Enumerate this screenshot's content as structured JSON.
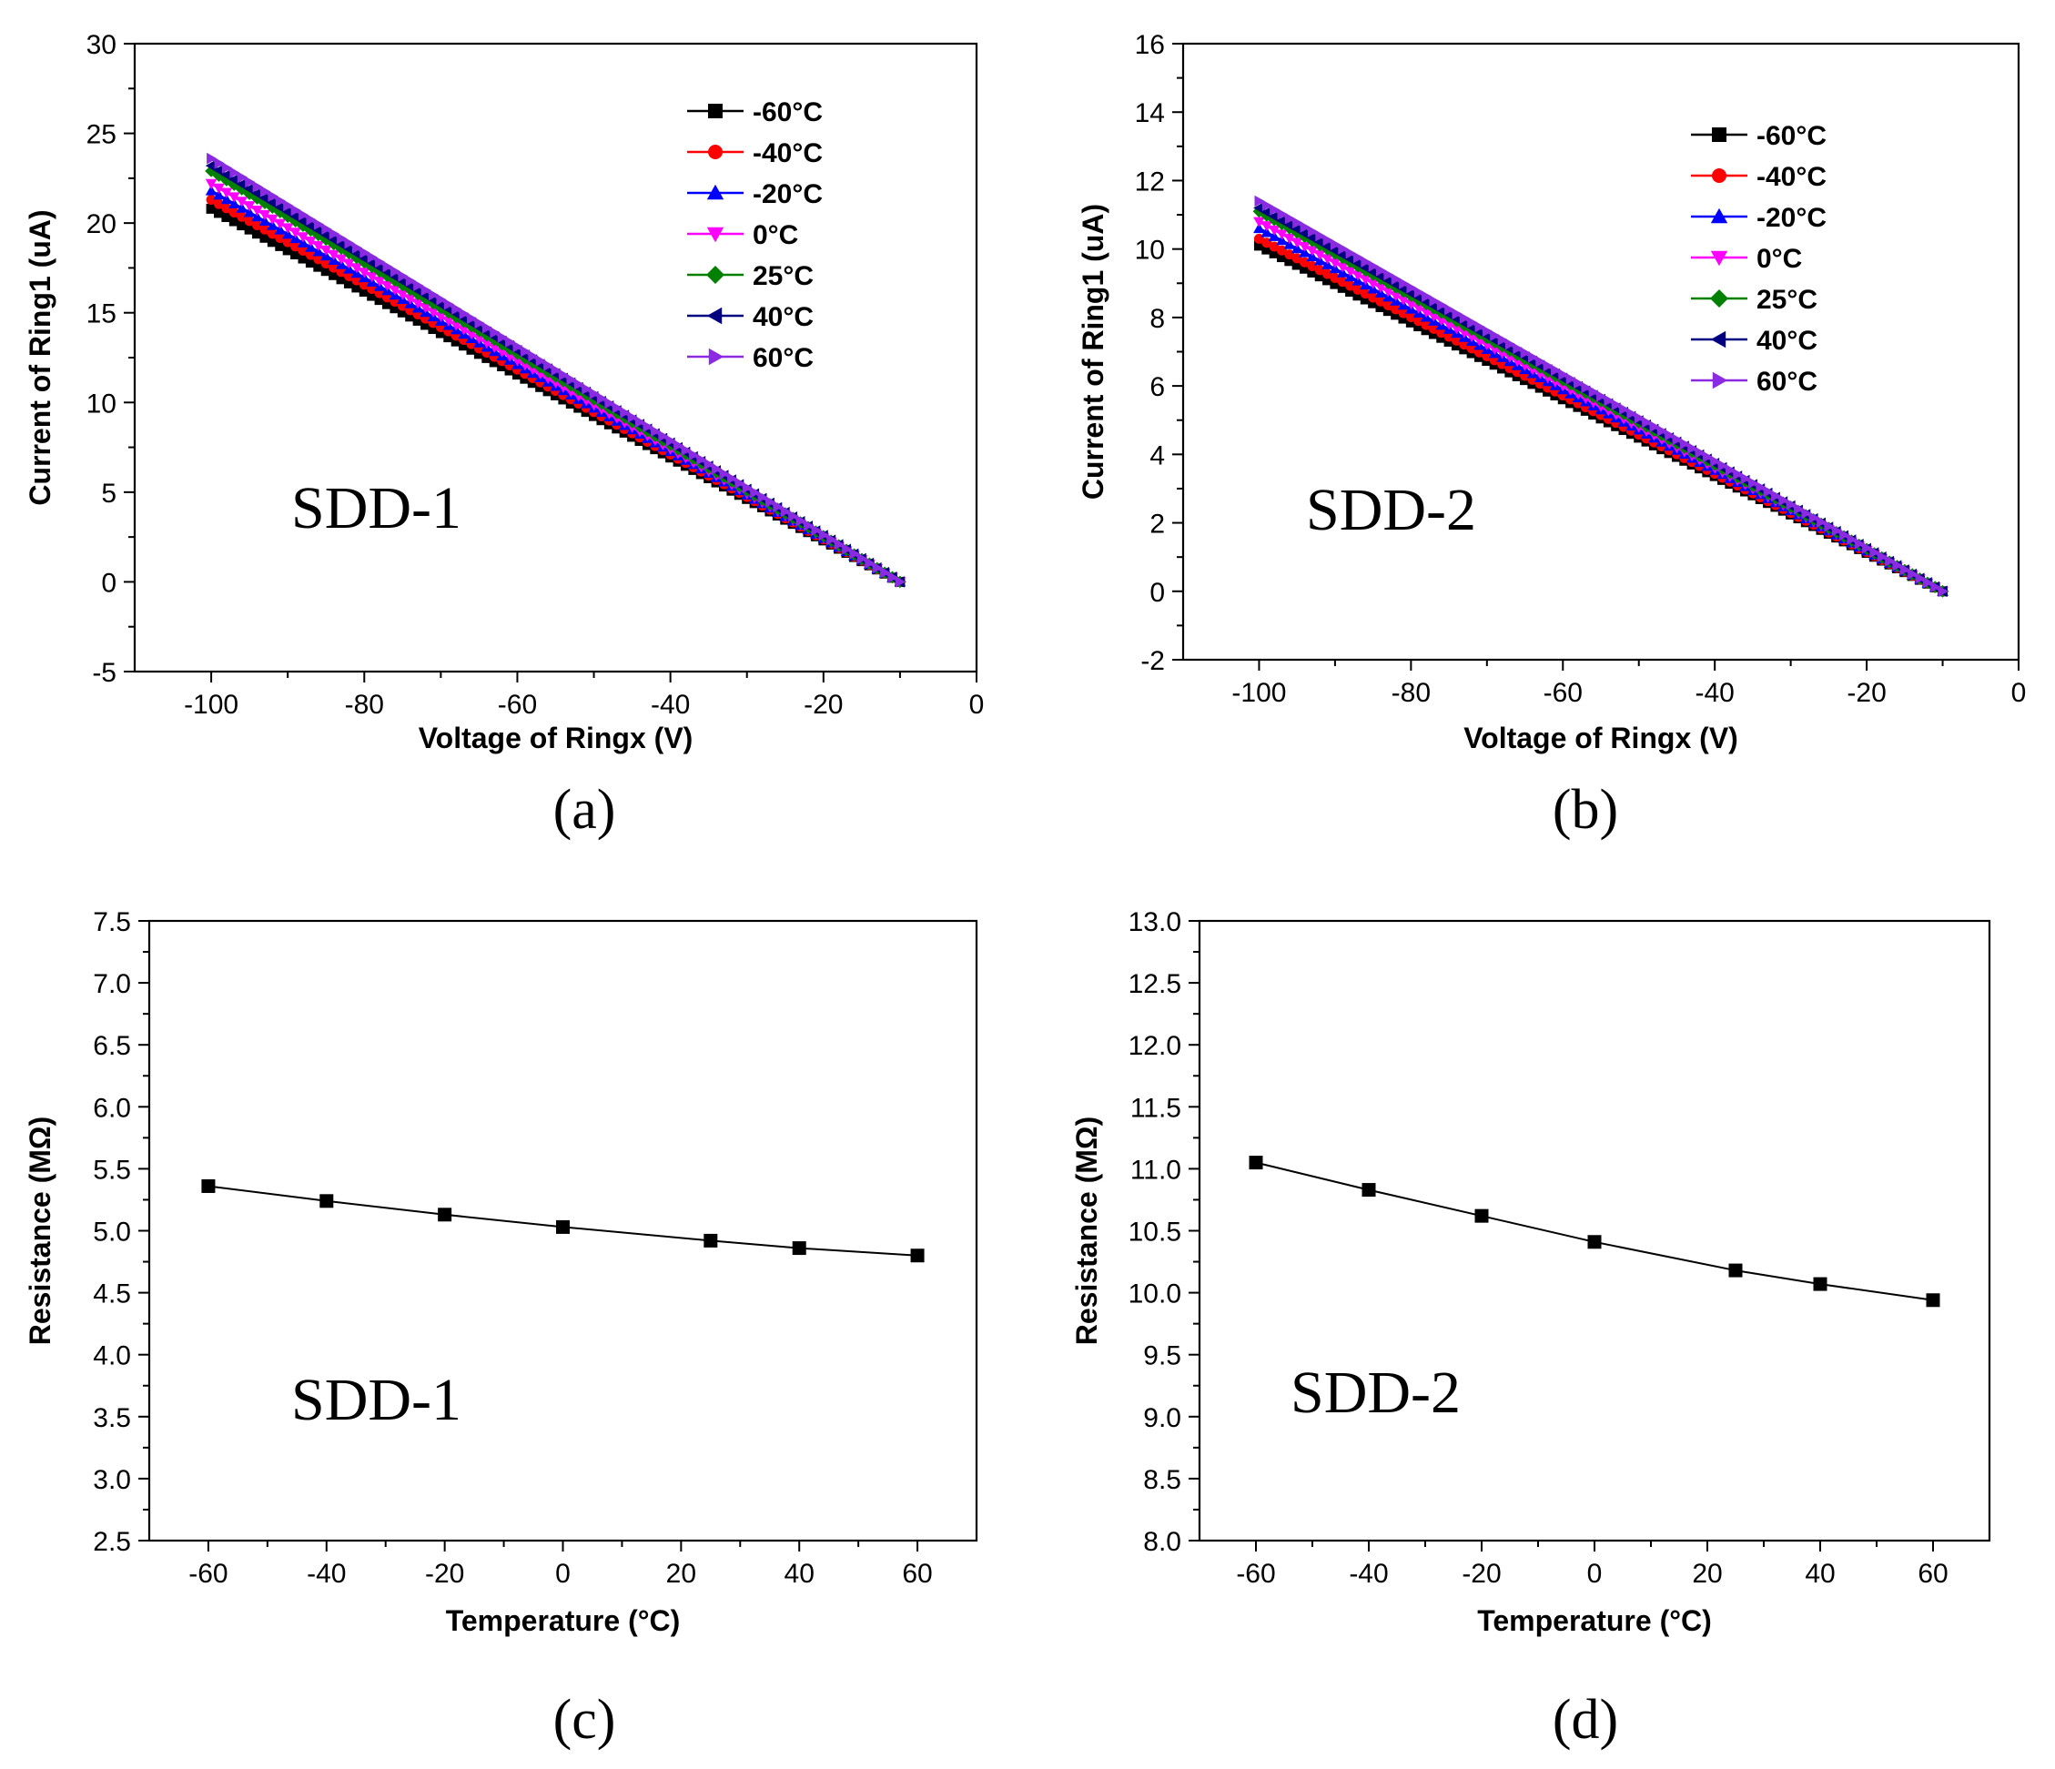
{
  "chart_data": [
    {
      "id": "a",
      "type": "line",
      "caption": "(a)",
      "annotation": "SDD-1",
      "xlabel": "Voltage of Ringx (V)",
      "ylabel": "Current of Ring1 (uA)",
      "xlim": [
        -110,
        0
      ],
      "ylim": [
        -5,
        30
      ],
      "xticks": [
        -100,
        -80,
        -60,
        -40,
        -20,
        0
      ],
      "yticks": [
        -5,
        0,
        5,
        10,
        15,
        20,
        25,
        30
      ],
      "xtick_labels": [
        "-100",
        "-80",
        "-60",
        "-40",
        "-20",
        "0"
      ],
      "ytick_labels": [
        "-5",
        "0",
        "5",
        "10",
        "15",
        "20",
        "25",
        "30"
      ],
      "x_range": [
        -100,
        -10
      ],
      "legend_position": "top-right",
      "series": [
        {
          "name": "-60°C",
          "color": "#000000",
          "marker": "square",
          "x_start": -100,
          "y_start": 20.8,
          "x_end": -10,
          "y_end": 0
        },
        {
          "name": "-40°C",
          "color": "#ff0000",
          "marker": "circle",
          "x_start": -100,
          "y_start": 21.3,
          "x_end": -10,
          "y_end": 0
        },
        {
          "name": "-20°C",
          "color": "#0000ff",
          "marker": "triangle-up",
          "x_start": -100,
          "y_start": 21.8,
          "x_end": -10,
          "y_end": 0
        },
        {
          "name": "0°C",
          "color": "#ff00ff",
          "marker": "triangle-down",
          "x_start": -100,
          "y_start": 22.2,
          "x_end": -10,
          "y_end": 0
        },
        {
          "name": "25°C",
          "color": "#008000",
          "marker": "diamond",
          "x_start": -100,
          "y_start": 22.9,
          "x_end": -10,
          "y_end": 0
        },
        {
          "name": "40°C",
          "color": "#000080",
          "marker": "triangle-left",
          "x_start": -100,
          "y_start": 23.2,
          "x_end": -10,
          "y_end": 0
        },
        {
          "name": "60°C",
          "color": "#8a2be2",
          "marker": "triangle-right",
          "x_start": -100,
          "y_start": 23.6,
          "x_end": -10,
          "y_end": 0
        }
      ]
    },
    {
      "id": "b",
      "type": "line",
      "caption": "(b)",
      "annotation": "SDD-2",
      "xlabel": "Voltage of Ringx (V)",
      "ylabel": "Current of Ring1 (uA)",
      "xlim": [
        -110,
        0
      ],
      "ylim": [
        -2,
        16
      ],
      "xticks": [
        -100,
        -80,
        -60,
        -40,
        -20,
        0
      ],
      "yticks": [
        -2,
        0,
        2,
        4,
        6,
        8,
        10,
        12,
        14,
        16
      ],
      "xtick_labels": [
        "-100",
        "-80",
        "-60",
        "-40",
        "-20",
        "0"
      ],
      "ytick_labels": [
        "-2",
        "0",
        "2",
        "4",
        "6",
        "8",
        "10",
        "12",
        "14",
        "16"
      ],
      "x_range": [
        -100,
        -10
      ],
      "legend_position": "top-right",
      "series": [
        {
          "name": "-60°C",
          "color": "#000000",
          "marker": "square",
          "x_start": -100,
          "y_start": 10.1,
          "x_end": -10,
          "y_end": 0
        },
        {
          "name": "-40°C",
          "color": "#ff0000",
          "marker": "circle",
          "x_start": -100,
          "y_start": 10.3,
          "x_end": -10,
          "y_end": 0
        },
        {
          "name": "-20°C",
          "color": "#0000ff",
          "marker": "triangle-up",
          "x_start": -100,
          "y_start": 10.6,
          "x_end": -10,
          "y_end": 0
        },
        {
          "name": "0°C",
          "color": "#ff00ff",
          "marker": "triangle-down",
          "x_start": -100,
          "y_start": 10.8,
          "x_end": -10,
          "y_end": 0
        },
        {
          "name": "25°C",
          "color": "#008000",
          "marker": "diamond",
          "x_start": -100,
          "y_start": 11.1,
          "x_end": -10,
          "y_end": 0
        },
        {
          "name": "40°C",
          "color": "#000080",
          "marker": "triangle-left",
          "x_start": -100,
          "y_start": 11.2,
          "x_end": -10,
          "y_end": 0
        },
        {
          "name": "60°C",
          "color": "#8a2be2",
          "marker": "triangle-right",
          "x_start": -100,
          "y_start": 11.4,
          "x_end": -10,
          "y_end": 0
        }
      ]
    },
    {
      "id": "c",
      "type": "line",
      "caption": "(c)",
      "annotation": "SDD-1",
      "xlabel": "Temperature (°C)",
      "ylabel": "Resistance (MΩ)",
      "xlim": [
        -70,
        70
      ],
      "ylim": [
        2.5,
        7.5
      ],
      "xticks": [
        -60,
        -40,
        -20,
        0,
        20,
        40,
        60
      ],
      "yticks": [
        2.5,
        3.0,
        3.5,
        4.0,
        4.5,
        5.0,
        5.5,
        6.0,
        6.5,
        7.0,
        7.5
      ],
      "xtick_labels": [
        "-60",
        "-40",
        "-20",
        "0",
        "20",
        "40",
        "60"
      ],
      "ytick_labels": [
        "2.5",
        "3.0",
        "3.5",
        "4.0",
        "4.5",
        "5.0",
        "5.5",
        "6.0",
        "6.5",
        "7.0",
        "7.5"
      ],
      "series": [
        {
          "name": "Resistance",
          "color": "#000000",
          "marker": "square",
          "x": [
            -60,
            -40,
            -20,
            0,
            25,
            40,
            60
          ],
          "y": [
            5.36,
            5.24,
            5.13,
            5.03,
            4.92,
            4.86,
            4.8
          ]
        }
      ]
    },
    {
      "id": "d",
      "type": "line",
      "caption": "(d)",
      "annotation": "SDD-2",
      "xlabel": "Temperature (°C)",
      "ylabel": "Resistance (MΩ)",
      "xlim": [
        -70,
        70
      ],
      "ylim": [
        8.0,
        13.0
      ],
      "xticks": [
        -60,
        -40,
        -20,
        0,
        20,
        40,
        60
      ],
      "yticks": [
        8.0,
        8.5,
        9.0,
        9.5,
        10.0,
        10.5,
        11.0,
        11.5,
        12.0,
        12.5,
        13.0
      ],
      "xtick_labels": [
        "-60",
        "-40",
        "-20",
        "0",
        "20",
        "40",
        "60"
      ],
      "ytick_labels": [
        "8.0",
        "8.5",
        "9.0",
        "9.5",
        "10.0",
        "10.5",
        "11.0",
        "11.5",
        "12.0",
        "12.5",
        "13.0"
      ],
      "series": [
        {
          "name": "Resistance",
          "color": "#000000",
          "marker": "square",
          "x": [
            -60,
            -40,
            -20,
            0,
            25,
            40,
            60
          ],
          "y": [
            11.05,
            10.83,
            10.62,
            10.41,
            10.18,
            10.07,
            9.94
          ]
        }
      ]
    }
  ]
}
